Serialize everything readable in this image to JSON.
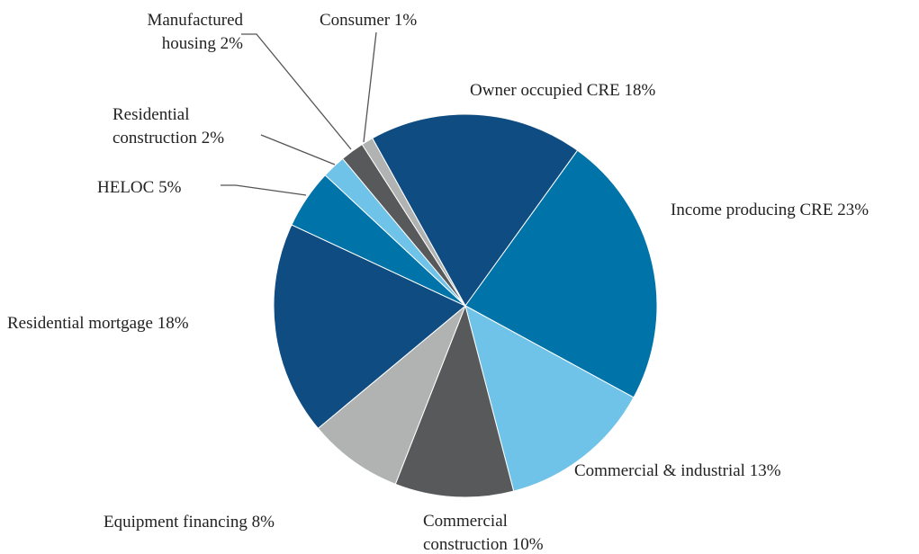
{
  "chart_data": {
    "type": "pie",
    "categories": [
      "Owner occupied CRE",
      "Income producing CRE",
      "Commercial & industrial",
      "Commercial construction",
      "Equipment financing",
      "Residential mortgage",
      "HELOC",
      "Residential construction",
      "Manufactured housing",
      "Consumer"
    ],
    "values": [
      18,
      23,
      13,
      10,
      8,
      18,
      5,
      2,
      2,
      1
    ],
    "value_labels": [
      "18%",
      "23%",
      "13%",
      "10%",
      "8%",
      "18%",
      "5%",
      "2%",
      "2%",
      "1%"
    ],
    "colors": [
      "#0f4c81",
      "#0073a8",
      "#6fc2e8",
      "#58595b",
      "#b1b3b3",
      "#0f4c81",
      "#0073a8",
      "#6fc2e8",
      "#58595b",
      "#b1b3b3"
    ]
  }
}
